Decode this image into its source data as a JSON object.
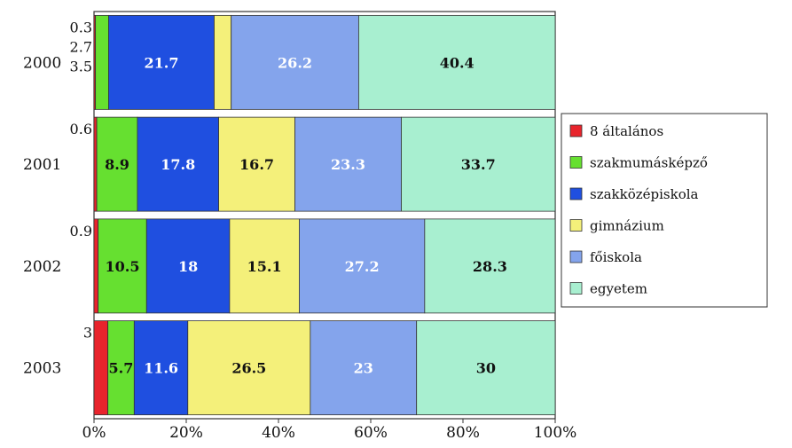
{
  "chart_data": {
    "type": "bar",
    "orientation": "horizontal",
    "stacked": "percent",
    "categories": [
      "2000",
      "2001",
      "2002",
      "2003"
    ],
    "series": [
      {
        "name": "8 általános",
        "color": "#e8242c",
        "values": [
          0.3,
          0.6,
          0.9,
          3
        ],
        "labels": [
          "0.3",
          "0.6",
          "0.9",
          "3"
        ],
        "label_color": "#111111"
      },
      {
        "name": "szakmumásképző",
        "color": "#66e030",
        "values": [
          2.7,
          8.9,
          10.5,
          5.7
        ],
        "labels": [
          "2.7",
          "8.9",
          "10.5",
          "5.7"
        ],
        "label_color": "#111111"
      },
      {
        "name": "szakközépiskola",
        "color": "#1f4fe0",
        "values": [
          21.7,
          17.8,
          18,
          11.6
        ],
        "labels": [
          "21.7",
          "17.8",
          "18",
          "11.6"
        ],
        "label_color": "#ffffff"
      },
      {
        "name": "gimnázium",
        "color": "#f4f07a",
        "values": [
          3.5,
          16.7,
          15.1,
          26.5
        ],
        "labels": [
          "3.5",
          "16.7",
          "15.1",
          "26.5"
        ],
        "label_color": "#111111"
      },
      {
        "name": "főiskola",
        "color": "#84a4ec",
        "values": [
          26.2,
          23.3,
          27.2,
          23
        ],
        "labels": [
          "26.2",
          "23.3",
          "27.2",
          "23"
        ],
        "label_color": "#ffffff"
      },
      {
        "name": "egyetem",
        "color": "#a8efd0",
        "values": [
          40.4,
          33.7,
          28.3,
          30
        ],
        "labels": [
          "40.4",
          "33.7",
          "28.3",
          "30"
        ],
        "label_color": "#111111"
      }
    ],
    "xaxis": {
      "ticks": [
        "0%",
        "20%",
        "40%",
        "60%",
        "80%",
        "100%"
      ],
      "range": [
        0,
        100
      ]
    },
    "legend": {
      "placement": "right"
    }
  }
}
